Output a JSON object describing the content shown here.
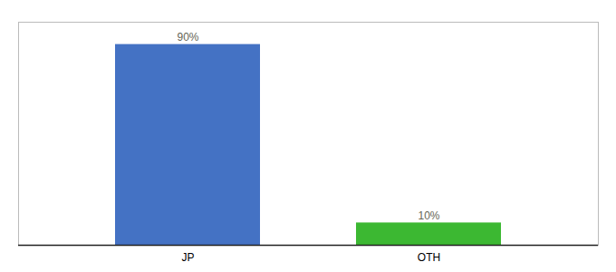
{
  "chart_data": {
    "type": "bar",
    "categories": [
      "JP",
      "OTH"
    ],
    "values": [
      90,
      10
    ],
    "value_labels": [
      "90%",
      "10%"
    ],
    "colors": [
      "#4472c4",
      "#3cb832"
    ],
    "ylim": [
      0,
      100
    ],
    "data_labels": true,
    "tick_labels": "x",
    "grid": false
  }
}
